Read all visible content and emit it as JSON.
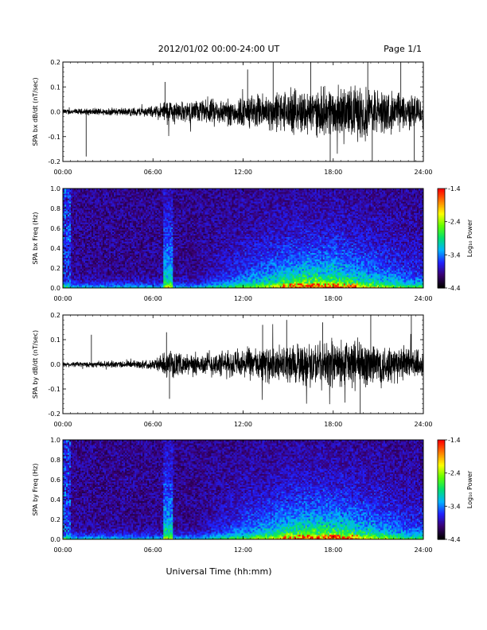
{
  "header": {
    "date_range": "2012/01/02  00:00-24:00 UT",
    "page": "Page 1/1"
  },
  "xlabel": "Universal Time (hh:mm)",
  "chart_data": [
    {
      "type": "line",
      "ylabel": "SPA bx dB/dt (nT/sec)",
      "xlim": [
        0,
        24
      ],
      "ylim": [
        -0.2,
        0.2
      ],
      "x_ticks": [
        "00:00",
        "06:00",
        "12:00",
        "18:00",
        "24:00"
      ],
      "y_ticks": [
        "-0.2",
        "-0.1",
        "0.0",
        "0.1",
        "0.2"
      ],
      "envelope": {
        "hours": [
          0,
          1,
          2,
          3,
          4,
          5,
          6,
          6.5,
          7,
          8,
          9,
          10,
          11,
          12,
          13,
          14,
          15,
          16,
          17,
          18,
          19,
          20,
          21,
          22,
          23,
          24
        ],
        "amplitude": [
          0.012,
          0.012,
          0.014,
          0.015,
          0.016,
          0.018,
          0.022,
          0.035,
          0.05,
          0.04,
          0.045,
          0.05,
          0.055,
          0.06,
          0.07,
          0.08,
          0.085,
          0.09,
          0.09,
          0.1,
          0.1,
          0.11,
          0.09,
          0.08,
          0.07,
          0.06
        ]
      },
      "spikes": [
        {
          "hour": 1.55,
          "value": -0.18
        },
        {
          "hour": 6.8,
          "value": 0.12
        },
        {
          "hour": 12.3,
          "value": 0.17
        },
        {
          "hour": 14.0,
          "value": 0.2
        },
        {
          "hour": 16.5,
          "value": 0.2
        },
        {
          "hour": 17.8,
          "value": -0.2
        },
        {
          "hour": 20.3,
          "value": 0.2
        },
        {
          "hour": 20.6,
          "value": -0.2
        },
        {
          "hour": 22.5,
          "value": 0.2
        },
        {
          "hour": 23.4,
          "value": -0.2
        }
      ]
    },
    {
      "type": "heatmap",
      "ylabel": "SPA bx Freq (Hz)",
      "xlim": [
        0,
        24
      ],
      "ylim": [
        0,
        1.0
      ],
      "x_ticks": [
        "00:00",
        "06:00",
        "12:00",
        "18:00",
        "24:00"
      ],
      "y_ticks": [
        "0.0",
        "0.2",
        "0.4",
        "0.6",
        "0.8",
        "1.0"
      ],
      "colorbar": {
        "label": "Log₁₀ Power",
        "range": [
          -4.4,
          -1.4
        ],
        "ticks": [
          "-1.4",
          "-2.4",
          "-3.4",
          "-4.4"
        ],
        "colors": [
          "#000000",
          "#3a0070",
          "#2020ff",
          "#00b4ff",
          "#00e070",
          "#60ff00",
          "#ffff00",
          "#ff8000",
          "#ff0000"
        ]
      }
    },
    {
      "type": "line",
      "ylabel": "SPA by dB/dt (nT/sec)",
      "xlim": [
        0,
        24
      ],
      "ylim": [
        -0.2,
        0.2
      ],
      "x_ticks": [
        "00:00",
        "06:00",
        "12:00",
        "18:00",
        "24:00"
      ],
      "y_ticks": [
        "-0.2",
        "-0.1",
        "0.0",
        "0.1",
        "0.2"
      ],
      "envelope": {
        "hours": [
          0,
          1,
          2,
          3,
          4,
          5,
          6,
          6.5,
          7,
          8,
          9,
          10,
          11,
          12,
          13,
          14,
          15,
          16,
          17,
          18,
          19,
          20,
          21,
          22,
          23,
          24
        ],
        "amplitude": [
          0.01,
          0.011,
          0.012,
          0.013,
          0.014,
          0.016,
          0.02,
          0.035,
          0.055,
          0.04,
          0.045,
          0.05,
          0.055,
          0.06,
          0.065,
          0.07,
          0.08,
          0.085,
          0.09,
          0.09,
          0.1,
          0.1,
          0.09,
          0.08,
          0.07,
          0.06
        ]
      },
      "spikes": [
        {
          "hour": 1.9,
          "value": 0.12
        },
        {
          "hour": 6.9,
          "value": 0.13
        },
        {
          "hour": 7.1,
          "value": -0.14
        },
        {
          "hour": 13.3,
          "value": 0.16
        },
        {
          "hour": 14.9,
          "value": 0.18
        },
        {
          "hour": 17.3,
          "value": 0.17
        },
        {
          "hour": 19.8,
          "value": -0.2
        },
        {
          "hour": 20.5,
          "value": 0.2
        },
        {
          "hour": 23.2,
          "value": 0.2
        }
      ]
    },
    {
      "type": "heatmap",
      "ylabel": "SPA by Freq (Hz)",
      "xlim": [
        0,
        24
      ],
      "ylim": [
        0,
        1.0
      ],
      "x_ticks": [
        "00:00",
        "06:00",
        "12:00",
        "18:00",
        "24:00"
      ],
      "y_ticks": [
        "0.0",
        "0.2",
        "0.4",
        "0.6",
        "0.8",
        "1.0"
      ],
      "colorbar": {
        "label": "Log₁₀ Power",
        "range": [
          -4.4,
          -1.4
        ],
        "ticks": [
          "-1.4",
          "-2.4",
          "-3.4",
          "-4.4"
        ],
        "colors": [
          "#000000",
          "#3a0070",
          "#2020ff",
          "#00b4ff",
          "#00e070",
          "#60ff00",
          "#ffff00",
          "#ff8000",
          "#ff0000"
        ]
      }
    }
  ]
}
